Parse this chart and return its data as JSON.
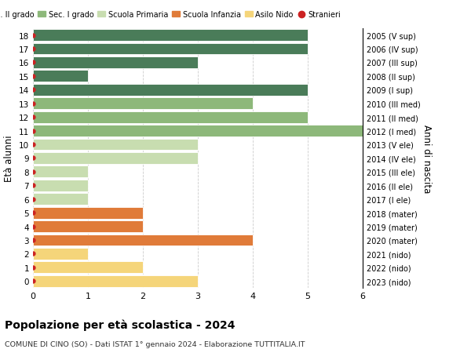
{
  "ages": [
    18,
    17,
    16,
    15,
    14,
    13,
    12,
    11,
    10,
    9,
    8,
    7,
    6,
    5,
    4,
    3,
    2,
    1,
    0
  ],
  "years": [
    "2005 (V sup)",
    "2006 (IV sup)",
    "2007 (III sup)",
    "2008 (II sup)",
    "2009 (I sup)",
    "2010 (III med)",
    "2011 (II med)",
    "2012 (I med)",
    "2013 (V ele)",
    "2014 (IV ele)",
    "2015 (III ele)",
    "2016 (II ele)",
    "2017 (I ele)",
    "2018 (mater)",
    "2019 (mater)",
    "2020 (mater)",
    "2021 (nido)",
    "2022 (nido)",
    "2023 (nido)"
  ],
  "values": [
    5,
    5,
    3,
    1,
    5,
    4,
    5,
    6.5,
    3,
    3,
    1,
    1,
    1,
    2,
    2,
    4,
    1,
    2,
    3
  ],
  "colors": [
    "#4a7c59",
    "#4a7c59",
    "#4a7c59",
    "#4a7c59",
    "#4a7c59",
    "#8db87a",
    "#8db87a",
    "#8db87a",
    "#c8ddb0",
    "#c8ddb0",
    "#c8ddb0",
    "#c8ddb0",
    "#c8ddb0",
    "#e07b39",
    "#e07b39",
    "#e07b39",
    "#f5d57a",
    "#f5d57a",
    "#f5d57a"
  ],
  "legend_labels": [
    "Sec. II grado",
    "Sec. I grado",
    "Scuola Primaria",
    "Scuola Infanzia",
    "Asilo Nido",
    "Stranieri"
  ],
  "legend_colors": [
    "#4a7c59",
    "#8db87a",
    "#c8ddb0",
    "#e07b39",
    "#f5d57a",
    "#cc2222"
  ],
  "title": "Popolazione per età scolastica - 2024",
  "subtitle": "COMUNE DI CINO (SO) - Dati ISTAT 1° gennaio 2024 - Elaborazione TUTTITALIA.IT",
  "ylabel": "Età alunni",
  "right_label": "Anni di nascita",
  "xlim": [
    0,
    6
  ],
  "ylim": [
    -0.5,
    18.5
  ],
  "bar_height": 0.85,
  "background_color": "#ffffff",
  "grid_color": "#cccccc",
  "dot_color": "#cc2222"
}
